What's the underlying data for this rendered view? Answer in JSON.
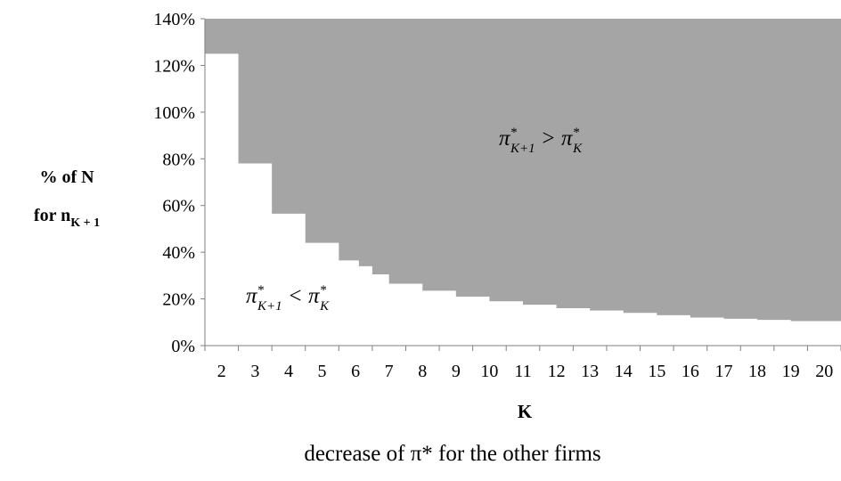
{
  "chart_data": {
    "type": "area",
    "x_categories": [
      "2",
      "3",
      "4",
      "5",
      "6",
      "7",
      "8",
      "9",
      "10",
      "11",
      "12",
      "13",
      "14",
      "15",
      "16",
      "17",
      "18",
      "19",
      "20"
    ],
    "boundary": [
      {
        "k": "2",
        "y": 125
      },
      {
        "k": "3",
        "y": 78
      },
      {
        "k": "4",
        "y": 56.5
      },
      {
        "k": "5",
        "y": 44
      },
      {
        "k": "6",
        "y": 36.5
      },
      {
        "k": "6.6",
        "y": 34
      },
      {
        "k": "7",
        "y": 30.5
      },
      {
        "k": "7.5",
        "y": 26.5
      },
      {
        "k": "8.5",
        "y": 23.5
      },
      {
        "k": "9.5",
        "y": 21
      },
      {
        "k": "10.5",
        "y": 19
      },
      {
        "k": "11.5",
        "y": 17.5
      },
      {
        "k": "12.5",
        "y": 16
      },
      {
        "k": "13.5",
        "y": 15
      },
      {
        "k": "14.5",
        "y": 14
      },
      {
        "k": "15.5",
        "y": 13
      },
      {
        "k": "16.5",
        "y": 12
      },
      {
        "k": "17.5",
        "y": 11.5
      },
      {
        "k": "18.5",
        "y": 11
      },
      {
        "k": "19.5",
        "y": 10.5
      }
    ],
    "y_range": [
      0,
      140
    ],
    "y_unit": "%",
    "y_ticks": [
      "0%",
      "20%",
      "40%",
      "60%",
      "80%",
      "100%",
      "120%",
      "140%"
    ],
    "ylabel_line1": "% of N",
    "ylabel_line2_main": "for n",
    "ylabel_line2_sub": "K + 1",
    "xlabel": "K",
    "upper_region_label": {
      "main": "π",
      "sup": "*",
      "sub": "K+1",
      "op": " > ",
      "main2": "π",
      "sup2": "*",
      "sub2": "K"
    },
    "lower_region_label": {
      "main": "π",
      "sup": "*",
      "sub": "K+1",
      "op": " < ",
      "main2": "π",
      "sup2": "*",
      "sub2": "K"
    },
    "caption": "decrease of π* for the other firms",
    "colors": {
      "upper_fill": "#a5a5a5",
      "lower_fill": "#ffffff",
      "axis": "#7f7f7f"
    }
  }
}
